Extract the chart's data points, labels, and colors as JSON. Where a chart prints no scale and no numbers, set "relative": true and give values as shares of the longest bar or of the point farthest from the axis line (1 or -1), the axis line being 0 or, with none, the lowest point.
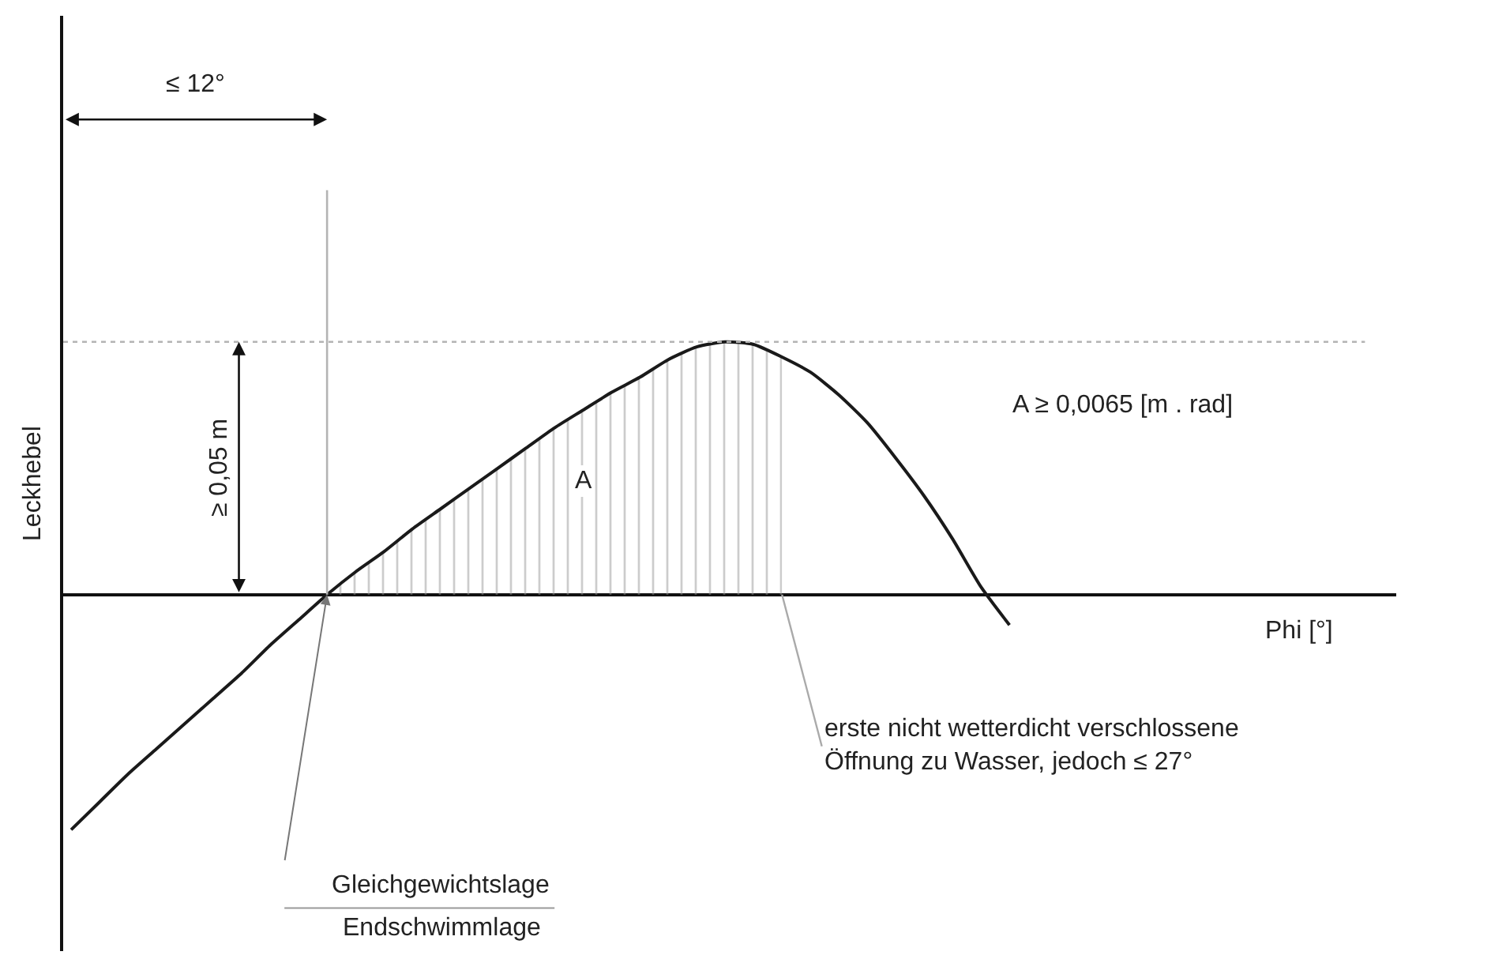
{
  "chart_data": {
    "type": "line",
    "relative": true,
    "ylabel": "Leckhebel",
    "categories": [
      null,
      null,
      null,
      null,
      null,
      null,
      null,
      null,
      null,
      null,
      null,
      null,
      null,
      null,
      null,
      null,
      null,
      null,
      null,
      null,
      null,
      null,
      null,
      null,
      null,
      null,
      null,
      null,
      null,
      null,
      null,
      null,
      null,
      null
    ],
    "series": [
      {
        "color": "#1a1a1a",
        "values": [
          -0.93,
          -0.82,
          -0.71,
          -0.61,
          -0.51,
          -0.41,
          -0.31,
          -0.2,
          -0.1,
          0,
          0.09,
          0.17,
          0.26,
          0.34,
          0.42,
          0.5,
          0.58,
          0.66,
          0.73,
          0.8,
          0.86,
          0.93,
          0.98,
          1,
          0.99,
          0.94,
          0.88,
          0.79,
          0.68,
          0.54,
          0.39,
          0.22,
          0.03,
          -0.12
        ]
      },
      {
        "type": "area",
        "color": "#9a9a9a",
        "values": [
          null,
          null,
          null,
          null,
          null,
          null,
          null,
          null,
          null,
          0,
          0.09,
          0.17,
          0.26,
          0.34,
          0.42,
          0.5,
          0.58,
          0.66,
          0.73,
          0.8,
          0.86,
          0.93,
          0.98,
          1,
          0.99,
          0.94,
          null,
          null,
          null,
          null,
          null,
          null,
          null,
          null
        ]
      }
    ],
    "ref_lines": [
      {
        "axis": "y",
        "value": 1,
        "color": "#b4b4b4",
        "line_style": "dotted"
      }
    ],
    "annotations": [
      "≤ 12°",
      "≥ 0,05 m",
      "A",
      "A ≥ 0,0065 [m . rad]",
      "erste nicht wetterdicht verschlossene\nÖffnung zu Wasser, jedoch ≤ 27°",
      "Gleichgewichtslage",
      "Endschwimmlage",
      "Phi [°]"
    ],
    "marker": "none",
    "line_style": "solid"
  }
}
